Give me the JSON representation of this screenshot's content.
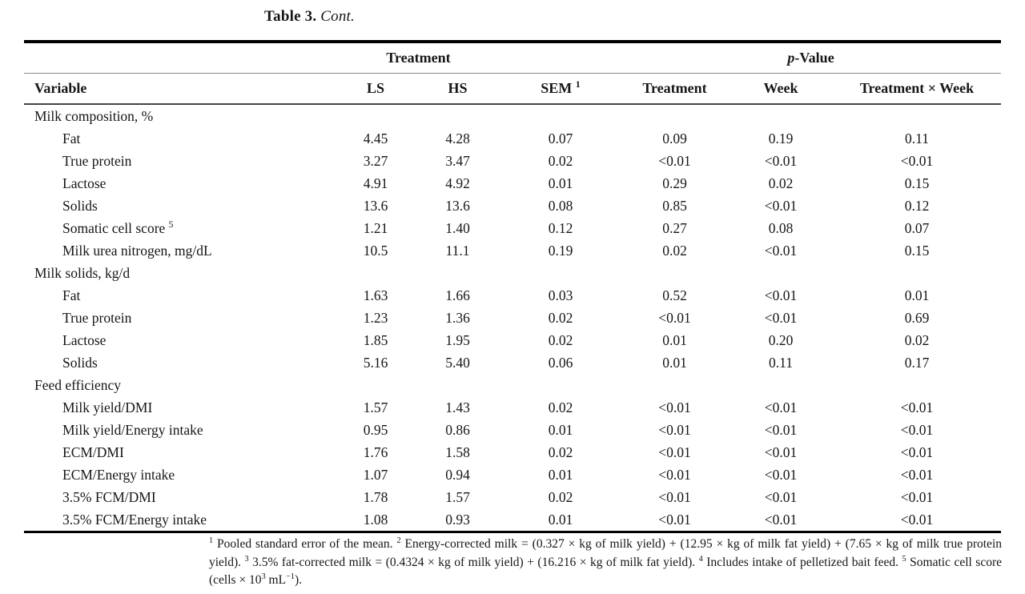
{
  "title": {
    "segments": [
      {
        "b": "Table 3."
      },
      {
        "t": " "
      },
      {
        "i": "Cont."
      }
    ]
  },
  "colors": {
    "background": "#ffffff",
    "text": "#161616",
    "rule_heavy": "#000000",
    "rule_medium": "#444444",
    "rule_light": "#8a8a8a"
  },
  "table": {
    "spanner": {
      "treatment": [
        {
          "t": "Treatment"
        }
      ],
      "p_value": [
        {
          "i": "p"
        },
        {
          "t": "-Value"
        }
      ]
    },
    "columns": [
      {
        "segs": [
          {
            "t": "Variable"
          }
        ]
      },
      {
        "segs": [
          {
            "t": "LS"
          }
        ]
      },
      {
        "segs": [
          {
            "t": "HS"
          }
        ]
      },
      {
        "segs": [
          {
            "t": "SEM "
          },
          {
            "sup": "1"
          }
        ]
      },
      {
        "segs": [
          {
            "t": "Treatment"
          }
        ]
      },
      {
        "segs": [
          {
            "t": "Week"
          }
        ]
      },
      {
        "segs": [
          {
            "t": "Treatment × Week"
          }
        ]
      }
    ],
    "sections": [
      {
        "header": "Milk composition, %",
        "rows": [
          {
            "label": "Fat",
            "values": [
              "4.45",
              "4.28",
              "0.07",
              "0.09",
              "0.19",
              "0.11"
            ]
          },
          {
            "label": "True protein",
            "values": [
              "3.27",
              "3.47",
              "0.02",
              "<0.01",
              "<0.01",
              "<0.01"
            ]
          },
          {
            "label": "Lactose",
            "values": [
              "4.91",
              "4.92",
              "0.01",
              "0.29",
              "0.02",
              "0.15"
            ]
          },
          {
            "label": "Solids",
            "values": [
              "13.6",
              "13.6",
              "0.08",
              "0.85",
              "<0.01",
              "0.12"
            ]
          },
          {
            "label": "Somatic cell score ",
            "sup": "5",
            "values": [
              "1.21",
              "1.40",
              "0.12",
              "0.27",
              "0.08",
              "0.07"
            ]
          },
          {
            "label": "Milk urea nitrogen, mg/dL",
            "values": [
              "10.5",
              "11.1",
              "0.19",
              "0.02",
              "<0.01",
              "0.15"
            ]
          }
        ]
      },
      {
        "header": "Milk solids, kg/d",
        "rows": [
          {
            "label": "Fat",
            "values": [
              "1.63",
              "1.66",
              "0.03",
              "0.52",
              "<0.01",
              "0.01"
            ]
          },
          {
            "label": "True protein",
            "values": [
              "1.23",
              "1.36",
              "0.02",
              "<0.01",
              "<0.01",
              "0.69"
            ]
          },
          {
            "label": "Lactose",
            "values": [
              "1.85",
              "1.95",
              "0.02",
              "0.01",
              "0.20",
              "0.02"
            ]
          },
          {
            "label": "Solids",
            "values": [
              "5.16",
              "5.40",
              "0.06",
              "0.01",
              "0.11",
              "0.17"
            ]
          }
        ]
      },
      {
        "header": "Feed efficiency",
        "rows": [
          {
            "label": "Milk yield/DMI",
            "values": [
              "1.57",
              "1.43",
              "0.02",
              "<0.01",
              "<0.01",
              "<0.01"
            ]
          },
          {
            "label": "Milk yield/Energy intake",
            "values": [
              "0.95",
              "0.86",
              "0.01",
              "<0.01",
              "<0.01",
              "<0.01"
            ]
          },
          {
            "label": "ECM/DMI",
            "values": [
              "1.76",
              "1.58",
              "0.02",
              "<0.01",
              "<0.01",
              "<0.01"
            ]
          },
          {
            "label": "ECM/Energy intake",
            "values": [
              "1.07",
              "0.94",
              "0.01",
              "<0.01",
              "<0.01",
              "<0.01"
            ]
          },
          {
            "label": "3.5% FCM/DMI",
            "values": [
              "1.78",
              "1.57",
              "0.02",
              "<0.01",
              "<0.01",
              "<0.01"
            ]
          },
          {
            "label": "3.5% FCM/Energy intake",
            "values": [
              "1.08",
              "0.93",
              "0.01",
              "<0.01",
              "<0.01",
              "<0.01"
            ]
          }
        ]
      }
    ]
  },
  "footnote": {
    "segments": [
      {
        "sup": "1"
      },
      {
        "t": " Pooled standard error of the mean. "
      },
      {
        "sup": "2"
      },
      {
        "t": " Energy-corrected milk = (0.327 × kg of milk yield) + (12.95 × kg of milk fat yield) + (7.65 × kg of milk true protein yield). "
      },
      {
        "sup": "3"
      },
      {
        "t": " 3.5% fat-corrected milk = (0.4324 × kg of milk yield) + (16.216 × kg of milk fat yield). "
      },
      {
        "sup": "4"
      },
      {
        "t": " Includes intake of pelletized bait feed. "
      },
      {
        "sup": "5"
      },
      {
        "t": " Somatic cell score (cells × 10"
      },
      {
        "sup": "3"
      },
      {
        "t": " mL"
      },
      {
        "sup": "−1"
      },
      {
        "t": ")."
      }
    ]
  }
}
